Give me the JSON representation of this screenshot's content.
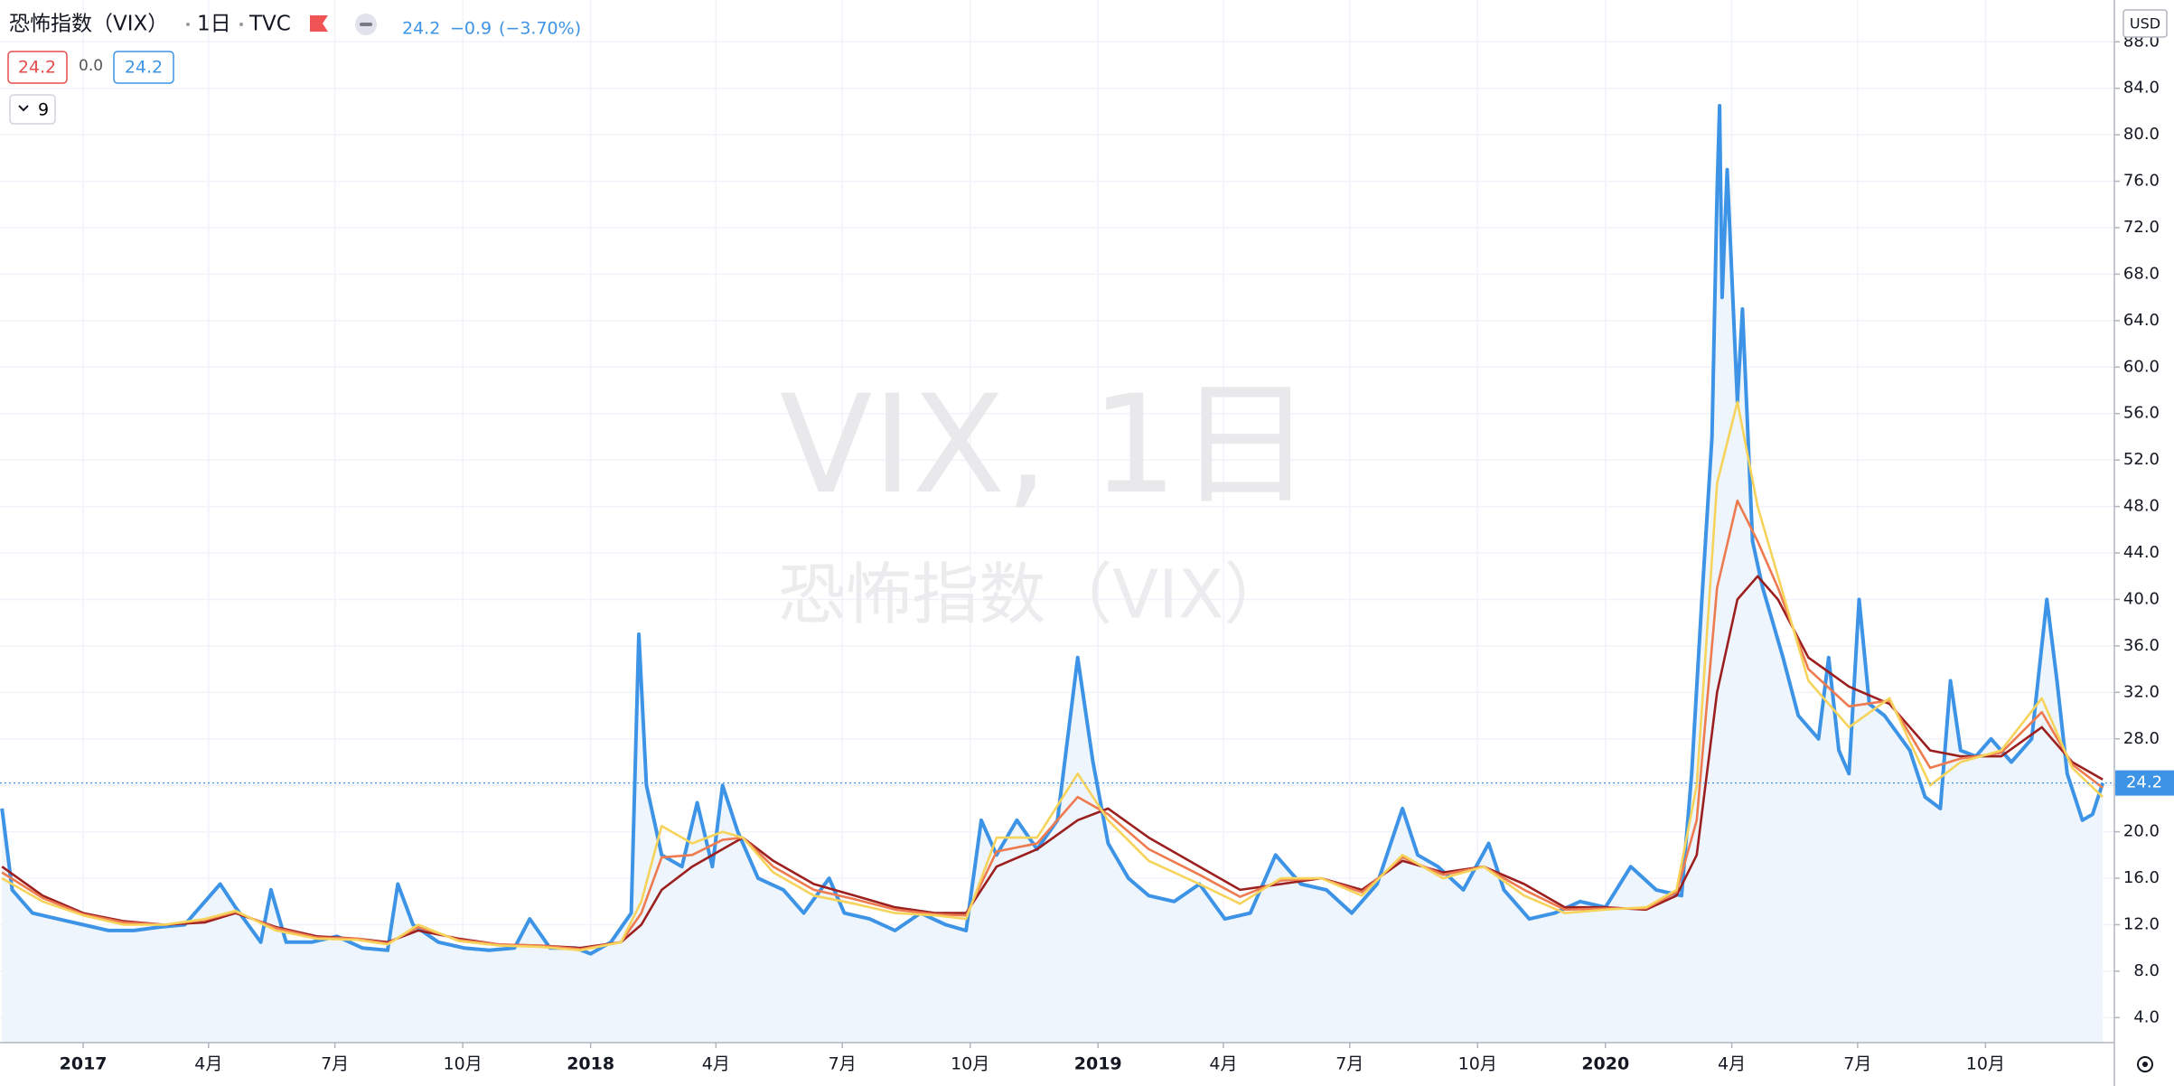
{
  "header": {
    "symbol": "恐怖指数（VIX）",
    "interval": "1日",
    "exchange": "TVC",
    "change": "−0.9",
    "change_pct": "(−3.70%)",
    "indicators": [
      "24.2",
      "0.0",
      "24.2"
    ],
    "indicator_count": "9",
    "watermark": [
      "VIX, 1日",
      "恐怖指数（VIX）"
    ],
    "currency": "USD"
  },
  "chart_data": {
    "type": "line",
    "grid": true,
    "xlim": [
      2016.836,
      2021.003
    ],
    "ylim": [
      1.85,
      91.6
    ],
    "xticks": [
      2017,
      {
        "value": 2017.247,
        "label": "4月"
      },
      {
        "value": 2017.496,
        "label": "7月"
      },
      {
        "value": 2017.748,
        "label": "10月"
      },
      2018,
      {
        "value": 2018.247,
        "label": "4月"
      },
      {
        "value": 2018.496,
        "label": "7月"
      },
      {
        "value": 2018.748,
        "label": "10月"
      },
      2019,
      {
        "value": 2019.247,
        "label": "4月"
      },
      {
        "value": 2019.496,
        "label": "7月"
      },
      {
        "value": 2019.748,
        "label": "10月"
      },
      2020,
      {
        "value": 2020.249,
        "label": "4月"
      },
      {
        "value": 2020.497,
        "label": "7月"
      },
      {
        "value": 2020.749,
        "label": "10月"
      }
    ],
    "yticks": [
      {
        "value": 4,
        "label": "4.0"
      },
      {
        "value": 8,
        "label": "8.0"
      },
      {
        "value": 12,
        "label": "12.0"
      },
      {
        "value": 16,
        "label": "16.0"
      },
      {
        "value": 20,
        "label": "20.0"
      },
      {
        "value": 24,
        "label": "24.0"
      },
      {
        "value": 28,
        "label": "28.0"
      },
      {
        "value": 32,
        "label": "32.0"
      },
      {
        "value": 36,
        "label": "36.0"
      },
      {
        "value": 40,
        "label": "40.0"
      },
      {
        "value": 44,
        "label": "44.0"
      },
      {
        "value": 48,
        "label": "48.0"
      },
      {
        "value": 52,
        "label": "52.0"
      },
      {
        "value": 56,
        "label": "56.0"
      },
      {
        "value": 60,
        "label": "60.0"
      },
      {
        "value": 64,
        "label": "64.0"
      },
      {
        "value": 68,
        "label": "68.0"
      },
      {
        "value": 72,
        "label": "72.0"
      },
      {
        "value": 76,
        "label": "76.0"
      },
      {
        "value": 80,
        "label": "80.0"
      },
      {
        "value": 84,
        "label": "84.0"
      },
      {
        "value": 88,
        "label": "88.0"
      }
    ],
    "series": [
      {
        "color": "#3d94e6",
        "fill": "#eef5fc",
        "x": [
          2016.84,
          2016.86,
          2016.9,
          2016.95,
          2017.0,
          2017.05,
          2017.1,
          2017.15,
          2017.2,
          2017.27,
          2017.3,
          2017.35,
          2017.37,
          2017.4,
          2017.45,
          2017.5,
          2017.55,
          2017.6,
          2017.62,
          2017.65,
          2017.7,
          2017.75,
          2017.8,
          2017.85,
          2017.88,
          2017.92,
          2017.97,
          2018.0,
          2018.04,
          2018.08,
          2018.095,
          2018.11,
          2018.14,
          2018.18,
          2018.21,
          2018.24,
          2018.26,
          2018.29,
          2018.33,
          2018.38,
          2018.42,
          2018.47,
          2018.5,
          2018.55,
          2018.6,
          2018.65,
          2018.7,
          2018.74,
          2018.77,
          2018.8,
          2018.84,
          2018.88,
          2018.92,
          2018.96,
          2018.99,
          2019.02,
          2019.06,
          2019.1,
          2019.15,
          2019.2,
          2019.25,
          2019.3,
          2019.35,
          2019.4,
          2019.45,
          2019.5,
          2019.55,
          2019.6,
          2019.63,
          2019.67,
          2019.72,
          2019.77,
          2019.8,
          2019.85,
          2019.9,
          2019.95,
          2020.0,
          2020.05,
          2020.1,
          2020.15,
          2020.17,
          2020.19,
          2020.21,
          2020.22,
          2020.225,
          2020.23,
          2020.24,
          2020.26,
          2020.27,
          2020.29,
          2020.31,
          2020.33,
          2020.35,
          2020.38,
          2020.42,
          2020.44,
          2020.46,
          2020.48,
          2020.5,
          2020.52,
          2020.55,
          2020.6,
          2020.63,
          2020.66,
          2020.68,
          2020.7,
          2020.73,
          2020.76,
          2020.8,
          2020.84,
          2020.87,
          2020.89,
          2020.91,
          2020.94,
          2020.96,
          2020.98
        ],
        "values": [
          22,
          15,
          13,
          12.5,
          12,
          11.5,
          11.5,
          11.8,
          12,
          15.5,
          13.5,
          10.5,
          15,
          10.5,
          10.5,
          11,
          10,
          9.8,
          15.5,
          12,
          10.5,
          10,
          9.8,
          10,
          12.5,
          10,
          10,
          9.5,
          10.5,
          13,
          37,
          24,
          18,
          17,
          22.5,
          17,
          24,
          20,
          16,
          15,
          13,
          16,
          13,
          12.5,
          11.5,
          13,
          12,
          11.5,
          21,
          18,
          21,
          18.5,
          21,
          35,
          26,
          19,
          16,
          14.5,
          14,
          15.5,
          12.5,
          13,
          18,
          15.5,
          15,
          13,
          15.5,
          22,
          18,
          17,
          15,
          19,
          15,
          12.5,
          13,
          14,
          13.5,
          17,
          15,
          14.5,
          25,
          40,
          54,
          75,
          82.5,
          66,
          77,
          57,
          65,
          45,
          41,
          38,
          35,
          30,
          28,
          35,
          27,
          25,
          40,
          31,
          30,
          27,
          23,
          22,
          33,
          27,
          26.5,
          28,
          26,
          28,
          40,
          33,
          25,
          21,
          21.5,
          24.2
        ]
      },
      {
        "color": "#9c1f1f",
        "x": [
          2016.84,
          2016.92,
          2017.0,
          2017.08,
          2017.16,
          2017.24,
          2017.3,
          2017.38,
          2017.46,
          2017.54,
          2017.6,
          2017.66,
          2017.74,
          2017.82,
          2017.9,
          2017.98,
          2018.06,
          2018.1,
          2018.14,
          2018.2,
          2018.26,
          2018.3,
          2018.36,
          2018.44,
          2018.52,
          2018.6,
          2018.68,
          2018.74,
          2018.8,
          2018.88,
          2018.96,
          2019.02,
          2019.1,
          2019.2,
          2019.28,
          2019.36,
          2019.44,
          2019.52,
          2019.6,
          2019.68,
          2019.76,
          2019.84,
          2019.92,
          2020.0,
          2020.08,
          2020.14,
          2020.18,
          2020.22,
          2020.26,
          2020.3,
          2020.34,
          2020.4,
          2020.48,
          2020.56,
          2020.64,
          2020.7,
          2020.78,
          2020.86,
          2020.92,
          2020.98
        ],
        "values": [
          17,
          14.5,
          13,
          12.3,
          12,
          12.2,
          13,
          11.8,
          11,
          10.8,
          10.5,
          11.5,
          10.8,
          10.3,
          10.2,
          10,
          10.5,
          12,
          15,
          17,
          18.5,
          19.5,
          17.5,
          15.5,
          14.5,
          13.5,
          13,
          13,
          17,
          18.5,
          21,
          22,
          19.5,
          17,
          15,
          15.5,
          16,
          15,
          17.5,
          16.5,
          17,
          15.5,
          13.5,
          13.5,
          13.3,
          14.5,
          18,
          32,
          40,
          42,
          40,
          35,
          32.5,
          31,
          27,
          26.5,
          26.5,
          29,
          26,
          24.5
        ]
      },
      {
        "color": "#ee7a4f",
        "x": [
          2016.84,
          2016.92,
          2017.0,
          2017.08,
          2017.16,
          2017.24,
          2017.3,
          2017.38,
          2017.46,
          2017.54,
          2017.6,
          2017.66,
          2017.74,
          2017.82,
          2017.9,
          2017.98,
          2018.06,
          2018.1,
          2018.14,
          2018.2,
          2018.26,
          2018.3,
          2018.36,
          2018.44,
          2018.52,
          2018.6,
          2018.68,
          2018.74,
          2018.8,
          2018.88,
          2018.96,
          2019.02,
          2019.1,
          2019.2,
          2019.28,
          2019.36,
          2019.44,
          2019.52,
          2019.6,
          2019.68,
          2019.76,
          2019.84,
          2019.92,
          2020.0,
          2020.08,
          2020.14,
          2020.18,
          2020.22,
          2020.26,
          2020.3,
          2020.34,
          2020.4,
          2020.48,
          2020.56,
          2020.64,
          2020.7,
          2020.78,
          2020.86,
          2020.92,
          2020.98
        ],
        "values": [
          16.5,
          14.3,
          12.9,
          12.2,
          12,
          12.4,
          13.1,
          11.7,
          10.9,
          10.8,
          10.4,
          11.8,
          10.7,
          10.3,
          10.2,
          9.9,
          10.5,
          13,
          17.8,
          18,
          19.3,
          19.5,
          17,
          15,
          14.2,
          13.3,
          12.9,
          12.8,
          18.3,
          19,
          23,
          21.5,
          18.5,
          16.3,
          14.4,
          15.8,
          16,
          14.8,
          17.8,
          16.3,
          17,
          15,
          13.3,
          13.4,
          13.4,
          14.8,
          21,
          41,
          48.5,
          45,
          41,
          34,
          30.8,
          31.3,
          25.5,
          26.3,
          26.8,
          30.3,
          25.8,
          23.8
        ]
      },
      {
        "color": "#f6d35b",
        "x": [
          2016.84,
          2016.92,
          2017.0,
          2017.08,
          2017.16,
          2017.24,
          2017.3,
          2017.38,
          2017.46,
          2017.54,
          2017.6,
          2017.66,
          2017.74,
          2017.82,
          2017.9,
          2017.98,
          2018.06,
          2018.1,
          2018.14,
          2018.2,
          2018.26,
          2018.3,
          2018.36,
          2018.44,
          2018.52,
          2018.6,
          2018.68,
          2018.74,
          2018.8,
          2018.88,
          2018.96,
          2019.02,
          2019.1,
          2019.2,
          2019.28,
          2019.36,
          2019.44,
          2019.52,
          2019.6,
          2019.68,
          2019.76,
          2019.84,
          2019.92,
          2020.0,
          2020.08,
          2020.14,
          2020.18,
          2020.22,
          2020.26,
          2020.3,
          2020.34,
          2020.4,
          2020.48,
          2020.56,
          2020.64,
          2020.7,
          2020.78,
          2020.86,
          2020.92,
          2020.98
        ],
        "values": [
          16,
          14,
          12.8,
          12,
          12,
          12.5,
          13.2,
          11.5,
          10.8,
          10.7,
          10.3,
          12,
          10.6,
          10.2,
          10.1,
          9.8,
          10.5,
          14,
          20.5,
          19,
          20,
          19.5,
          16.5,
          14.5,
          13.8,
          13,
          12.8,
          12.5,
          19.5,
          19.5,
          25,
          21,
          17.5,
          15.5,
          13.8,
          16,
          16,
          14.5,
          18,
          16,
          17,
          14.5,
          13,
          13.3,
          13.5,
          15,
          24,
          50,
          57,
          48,
          42,
          33,
          29,
          31.5,
          24,
          26,
          27,
          31.5,
          25.5,
          23
        ]
      }
    ]
  }
}
